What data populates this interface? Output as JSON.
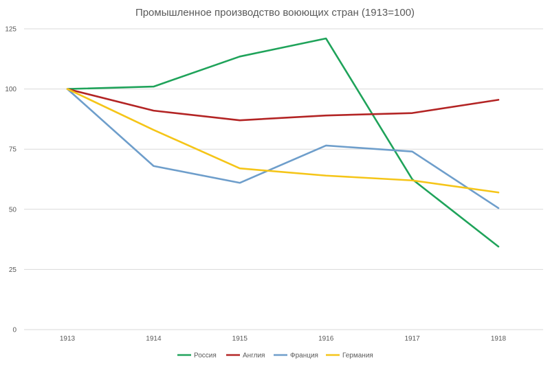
{
  "chart_data": {
    "type": "line",
    "title": "Промышленное производство воюющих стран (1913=100)",
    "xlabel": "",
    "ylabel": "",
    "categories": [
      "1913",
      "1914",
      "1915",
      "1916",
      "1917",
      "1918"
    ],
    "yticks": [
      "0",
      "25",
      "50",
      "75",
      "100",
      "125"
    ],
    "ylim": [
      0,
      125
    ],
    "grid": true,
    "legend_position": "bottom",
    "series": [
      {
        "name": "Россия",
        "color": "#1fa35a",
        "values": [
          100,
          101,
          113.5,
          121,
          62.5,
          34.5
        ]
      },
      {
        "name": "Англия",
        "color": "#b32424",
        "values": [
          100,
          91,
          87,
          89,
          90,
          95.5
        ]
      },
      {
        "name": "Франция",
        "color": "#6e9ecb",
        "values": [
          100,
          68,
          61,
          76.5,
          74,
          50.5
        ]
      },
      {
        "name": "Германия",
        "color": "#f5c518",
        "values": [
          100,
          83,
          67,
          64,
          62,
          57
        ]
      }
    ]
  }
}
